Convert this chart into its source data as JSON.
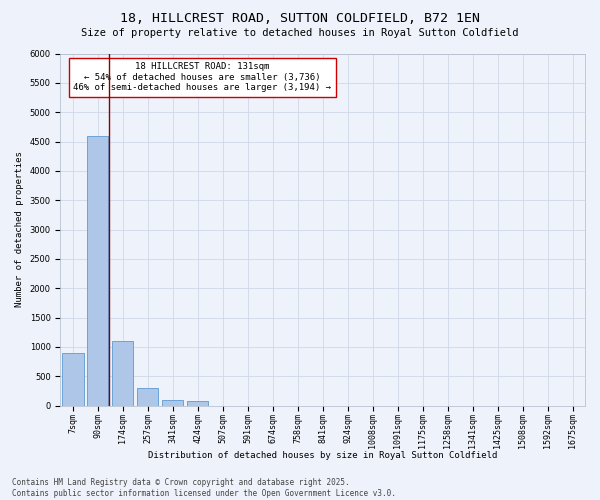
{
  "title": "18, HILLCREST ROAD, SUTTON COLDFIELD, B72 1EN",
  "subtitle": "Size of property relative to detached houses in Royal Sutton Coldfield",
  "xlabel": "Distribution of detached houses by size in Royal Sutton Coldfield",
  "ylabel": "Number of detached properties",
  "categories": [
    "7sqm",
    "90sqm",
    "174sqm",
    "257sqm",
    "341sqm",
    "424sqm",
    "507sqm",
    "591sqm",
    "674sqm",
    "758sqm",
    "841sqm",
    "924sqm",
    "1008sqm",
    "1091sqm",
    "1175sqm",
    "1258sqm",
    "1341sqm",
    "1425sqm",
    "1508sqm",
    "1592sqm",
    "1675sqm"
  ],
  "values": [
    900,
    4600,
    1100,
    300,
    90,
    70,
    0,
    0,
    0,
    0,
    0,
    0,
    0,
    0,
    0,
    0,
    0,
    0,
    0,
    0,
    0
  ],
  "bar_color": "#aec6e8",
  "bar_edge_color": "#5b9bd5",
  "grid_color": "#d0d8e8",
  "background_color": "#eef2fa",
  "vline_x": 1.45,
  "vline_color": "#8b0000",
  "annotation_text": "18 HILLCREST ROAD: 131sqm\n← 54% of detached houses are smaller (3,736)\n46% of semi-detached houses are larger (3,194) →",
  "annotation_box_color": "white",
  "annotation_box_edge": "#cc0000",
  "ylim": [
    0,
    6000
  ],
  "yticks": [
    0,
    500,
    1000,
    1500,
    2000,
    2500,
    3000,
    3500,
    4000,
    4500,
    5000,
    5500,
    6000
  ],
  "footer": "Contains HM Land Registry data © Crown copyright and database right 2025.\nContains public sector information licensed under the Open Government Licence v3.0.",
  "title_fontsize": 9.5,
  "subtitle_fontsize": 7.5,
  "xlabel_fontsize": 6.5,
  "ylabel_fontsize": 6.5,
  "tick_fontsize": 6,
  "annotation_fontsize": 6.5,
  "footer_fontsize": 5.5
}
